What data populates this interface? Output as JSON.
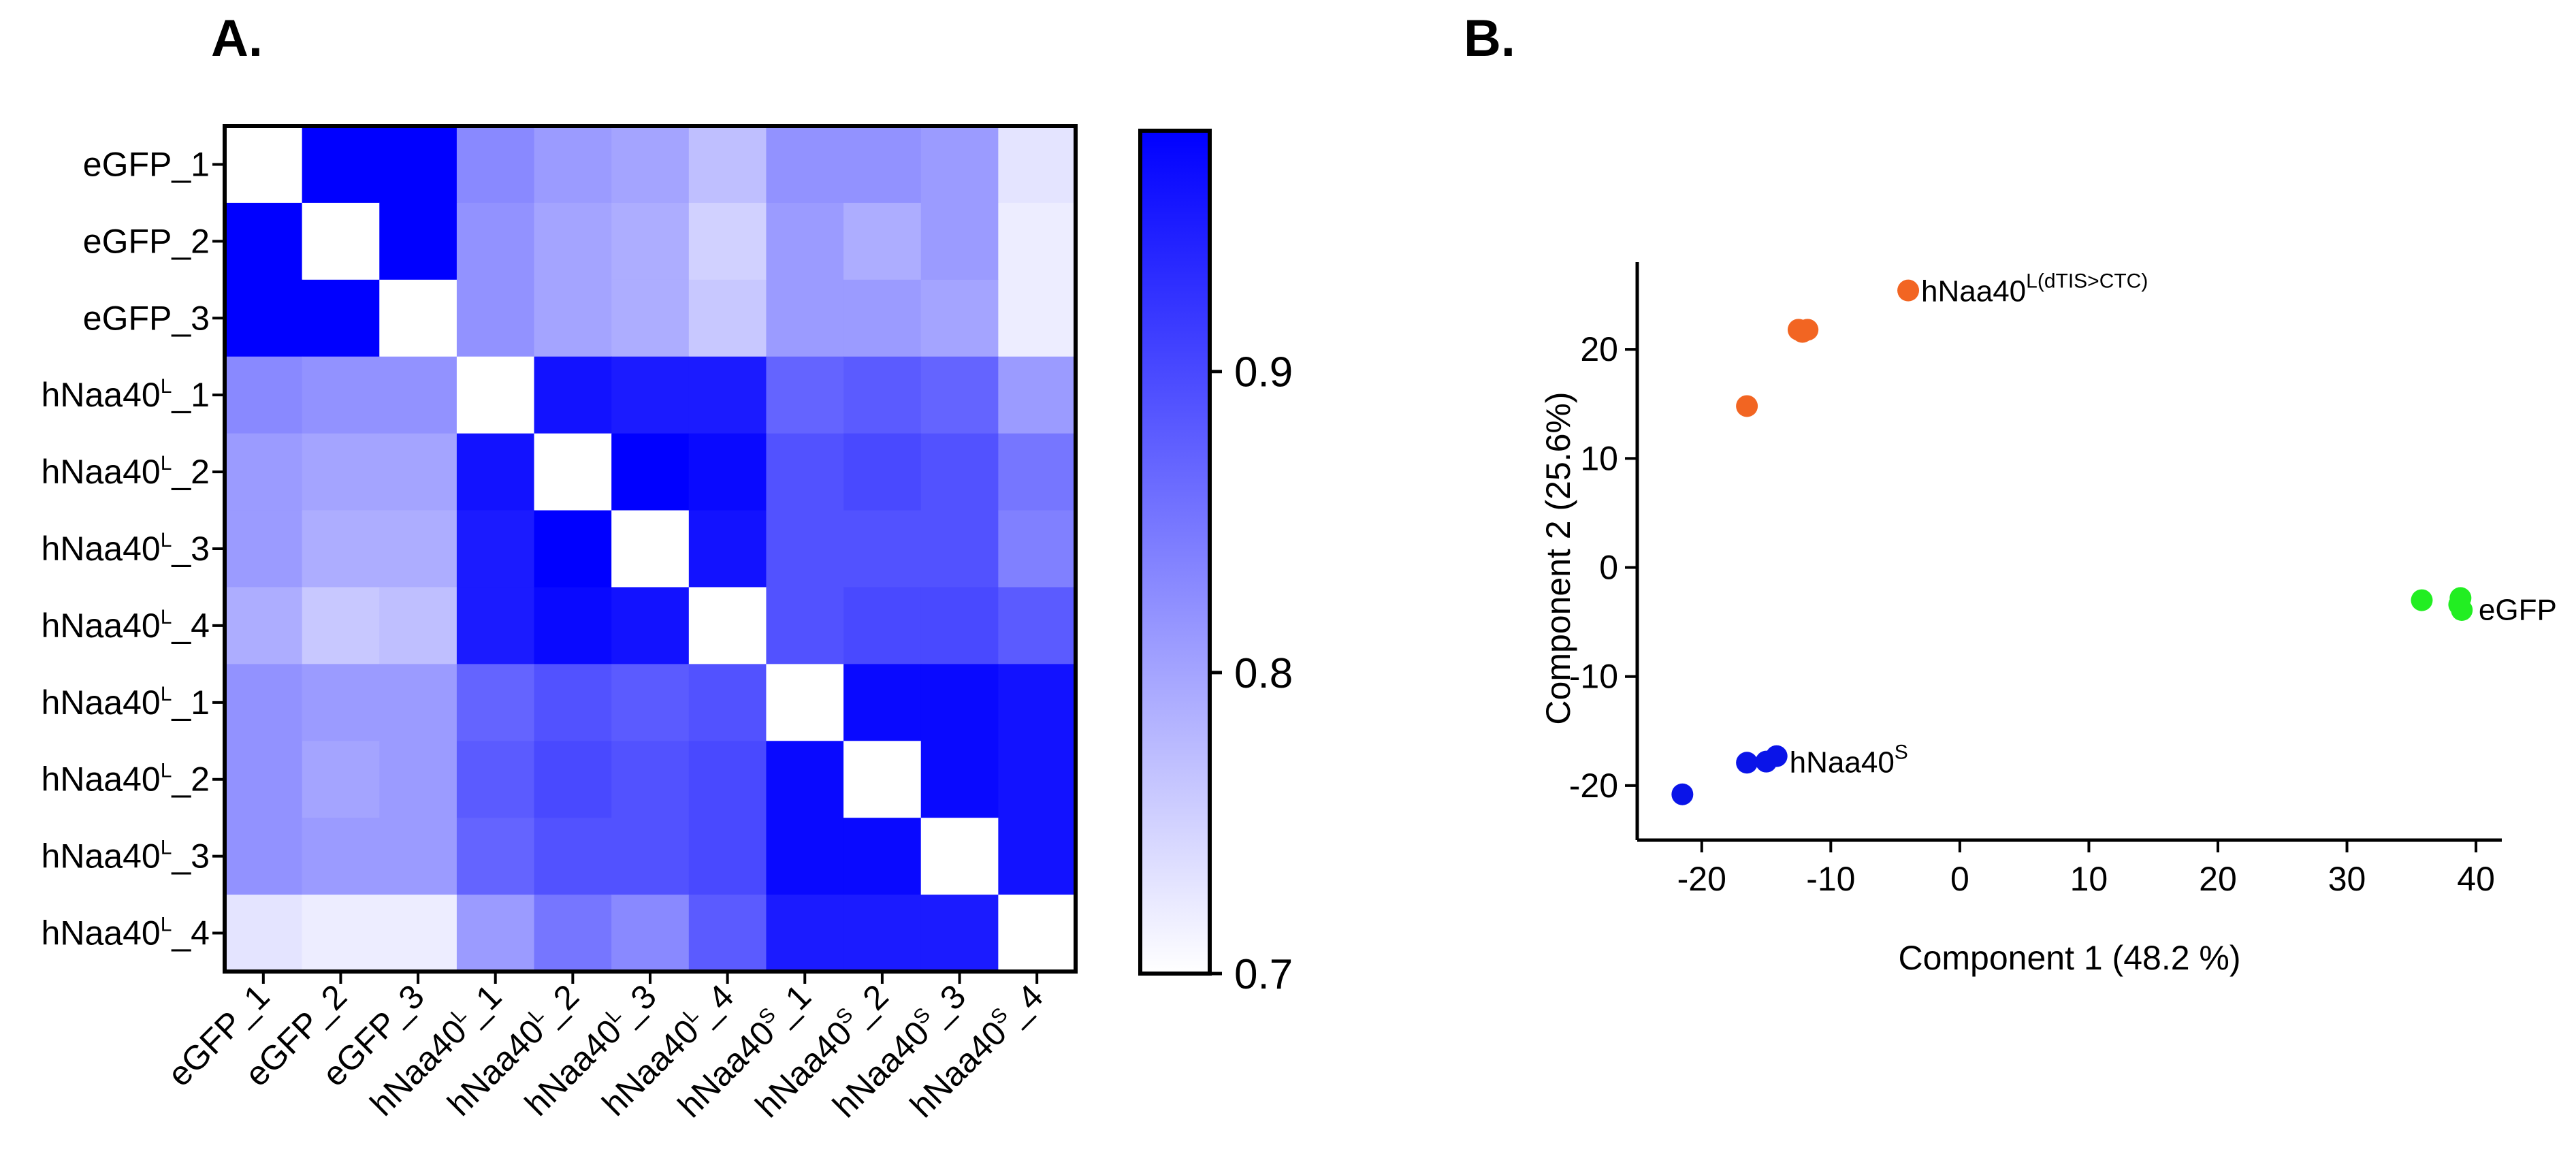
{
  "panels": {
    "a_label": "A.",
    "b_label": "B."
  },
  "chart_data": [
    {
      "type": "heatmap",
      "panel": "A.",
      "row_labels": [
        {
          "base": "eGFP",
          "sup": "",
          "suffix": "_1"
        },
        {
          "base": "eGFP",
          "sup": "",
          "suffix": "_2"
        },
        {
          "base": "eGFP",
          "sup": "",
          "suffix": "_3"
        },
        {
          "base": "hNaa40",
          "sup": "L",
          "suffix": "_1"
        },
        {
          "base": "hNaa40",
          "sup": "L",
          "suffix": "_2"
        },
        {
          "base": "hNaa40",
          "sup": "L",
          "suffix": "_3"
        },
        {
          "base": "hNaa40",
          "sup": "L",
          "suffix": "_4"
        },
        {
          "base": "hNaa40",
          "sup": "L",
          "suffix": "_1"
        },
        {
          "base": "hNaa40",
          "sup": "L",
          "suffix": "_2"
        },
        {
          "base": "hNaa40",
          "sup": "L",
          "suffix": "_3"
        },
        {
          "base": "hNaa40",
          "sup": "L",
          "suffix": "_4"
        }
      ],
      "col_labels": [
        {
          "base": "eGFP",
          "sup": "",
          "suffix": "_1"
        },
        {
          "base": "eGFP",
          "sup": "",
          "suffix": "_2"
        },
        {
          "base": "eGFP",
          "sup": "",
          "suffix": "_3"
        },
        {
          "base": "hNaa40",
          "sup": "L",
          "suffix": "_1"
        },
        {
          "base": "hNaa40",
          "sup": "L",
          "suffix": "_2"
        },
        {
          "base": "hNaa40",
          "sup": "L",
          "suffix": "_3"
        },
        {
          "base": "hNaa40",
          "sup": "L",
          "suffix": "_4"
        },
        {
          "base": "hNaa40",
          "sup": "S",
          "suffix": "_1"
        },
        {
          "base": "hNaa40",
          "sup": "S",
          "suffix": "_2"
        },
        {
          "base": "hNaa40",
          "sup": "S",
          "suffix": "_3"
        },
        {
          "base": "hNaa40",
          "sup": "S",
          "suffix": "_4"
        }
      ],
      "values": [
        [
          1.0,
          0.98,
          0.98,
          0.83,
          0.81,
          0.8,
          0.77,
          0.82,
          0.82,
          0.81,
          0.73
        ],
        [
          0.98,
          1.0,
          0.98,
          0.82,
          0.8,
          0.79,
          0.75,
          0.81,
          0.79,
          0.81,
          0.72
        ],
        [
          0.98,
          0.98,
          1.0,
          0.82,
          0.8,
          0.79,
          0.76,
          0.81,
          0.81,
          0.8,
          0.72
        ],
        [
          0.83,
          0.82,
          0.82,
          1.0,
          0.96,
          0.95,
          0.95,
          0.87,
          0.88,
          0.87,
          0.81
        ],
        [
          0.81,
          0.8,
          0.8,
          0.96,
          1.0,
          0.98,
          0.97,
          0.89,
          0.9,
          0.89,
          0.85
        ],
        [
          0.81,
          0.79,
          0.79,
          0.95,
          0.98,
          1.0,
          0.96,
          0.89,
          0.89,
          0.89,
          0.84
        ],
        [
          0.79,
          0.76,
          0.77,
          0.95,
          0.97,
          0.96,
          1.0,
          0.89,
          0.9,
          0.9,
          0.88
        ],
        [
          0.82,
          0.81,
          0.81,
          0.87,
          0.89,
          0.88,
          0.89,
          1.0,
          0.97,
          0.97,
          0.96
        ],
        [
          0.82,
          0.8,
          0.81,
          0.88,
          0.9,
          0.89,
          0.9,
          0.97,
          1.0,
          0.97,
          0.96
        ],
        [
          0.82,
          0.81,
          0.81,
          0.87,
          0.89,
          0.89,
          0.9,
          0.97,
          0.97,
          1.0,
          0.96
        ],
        [
          0.73,
          0.72,
          0.72,
          0.81,
          0.85,
          0.83,
          0.88,
          0.95,
          0.95,
          0.95,
          1.0
        ]
      ],
      "diagonal_color": "#ffffff",
      "colorbar": {
        "min": 0.7,
        "max": 0.98,
        "ticks": [
          "0.9",
          "0.8",
          "0.7"
        ],
        "tick_values": [
          0.9,
          0.8,
          0.7
        ],
        "low_color": "#ffffff",
        "high_color": "#0000ff"
      }
    },
    {
      "type": "scatter",
      "panel": "B.",
      "xlabel": "Component 1 (48.2 %)",
      "ylabel": "Component 2 (25.6%)",
      "xlim": [
        -25,
        42
      ],
      "ylim": [
        -25,
        28
      ],
      "xticks": [
        "-20",
        "-10",
        "0",
        "10",
        "20",
        "30",
        "40"
      ],
      "xtick_values": [
        -20,
        -10,
        0,
        10,
        20,
        30,
        40
      ],
      "yticks": [
        "-20",
        "-10",
        "0",
        "10",
        "20"
      ],
      "ytick_values": [
        -20,
        -10,
        0,
        10,
        20
      ],
      "series": [
        {
          "name": "hNaa40",
          "sup": "L(dTIS>CTC)",
          "color": "#f26522",
          "points": [
            [
              -16.5,
              14.8
            ],
            [
              -12.5,
              21.8
            ],
            [
              -11.8,
              21.8
            ],
            [
              -12.2,
              21.6
            ],
            [
              -4.0,
              25.4
            ]
          ],
          "label_at": [
            -3.0,
            25.4
          ]
        },
        {
          "name": "eGFP",
          "sup": "",
          "color": "#22ee22",
          "points": [
            [
              35.8,
              -3.0
            ],
            [
              38.8,
              -2.8
            ],
            [
              38.9,
              -3.9
            ],
            [
              38.7,
              -3.4
            ]
          ],
          "label_at": [
            40.2,
            -3.8
          ]
        },
        {
          "name": "hNaa40",
          "sup": "S",
          "color": "#0a14e8",
          "points": [
            [
              -21.5,
              -20.8
            ],
            [
              -16.5,
              -17.9
            ],
            [
              -15.0,
              -17.8
            ],
            [
              -14.2,
              -17.3
            ]
          ],
          "label_at": [
            -13.2,
            -17.8
          ]
        }
      ]
    }
  ]
}
